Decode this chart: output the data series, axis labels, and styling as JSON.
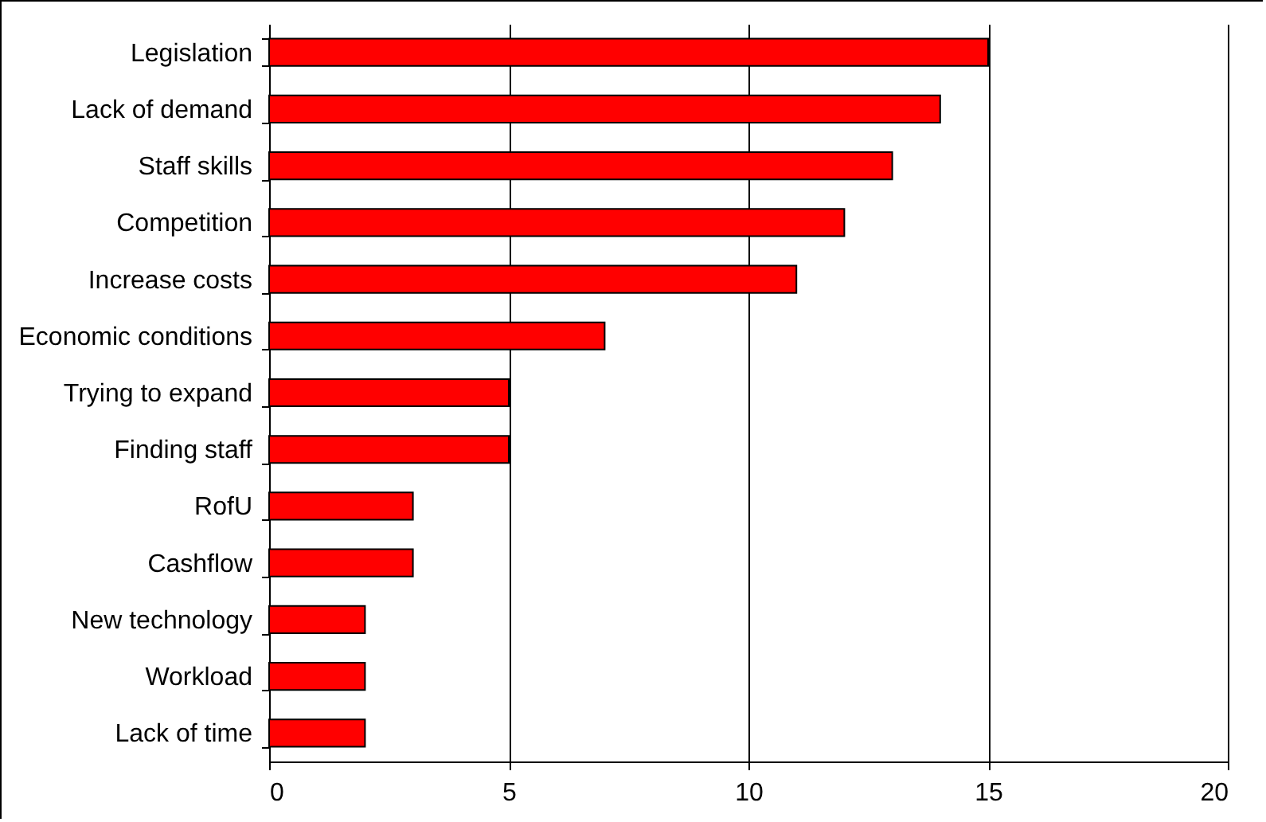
{
  "chart_data": {
    "type": "bar",
    "orientation": "horizontal",
    "categories": [
      "Legislation",
      "Lack of demand",
      "Staff skills",
      "Competition",
      "Increase costs",
      "Economic conditions",
      "Trying to expand",
      "Finding staff",
      "RofU",
      "Cashflow",
      "New technology",
      "Workload",
      "Lack of time"
    ],
    "values": [
      15,
      14,
      13,
      12,
      11,
      7,
      5,
      5,
      3,
      3,
      2,
      2,
      2
    ],
    "color": "#ff0000",
    "xlim": [
      0,
      20
    ],
    "xticks": [
      0,
      5,
      10,
      15,
      20
    ],
    "grid": "x"
  }
}
